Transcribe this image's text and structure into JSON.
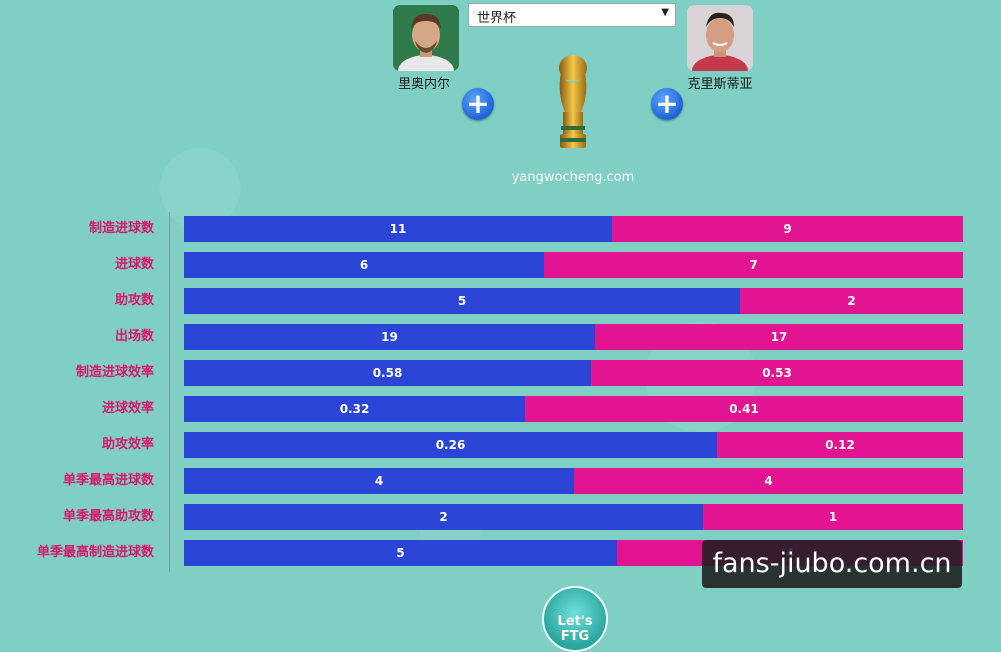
{
  "header": {
    "competition_select": "世界杯",
    "site": "yangwocheng.com",
    "player_left": {
      "name": "里奥内尔"
    },
    "player_right": {
      "name": "克里斯蒂亚"
    }
  },
  "watermark": "fans-jiubo.com.cn",
  "go_button": "Let's FTG",
  "colors": {
    "left": "#2b45d6",
    "right": "#e31491",
    "label": "#d8186c",
    "background": "#7fcfc5"
  },
  "chart_data": {
    "type": "bar",
    "orientation": "horizontal-stacked-100",
    "categories": [
      "制造进球数",
      "进球数",
      "助攻数",
      "出场数",
      "制造进球效率",
      "进球效率",
      "助攻效率",
      "单季最高进球数",
      "单季最高助攻数",
      "单季最高制造进球数"
    ],
    "series": [
      {
        "name": "里奥内尔",
        "values": [
          11,
          6,
          5,
          19,
          0.58,
          0.32,
          0.26,
          4,
          2,
          5
        ],
        "color": "#2b45d6"
      },
      {
        "name": "克里斯蒂亚",
        "values": [
          9,
          7,
          2,
          17,
          0.53,
          0.41,
          0.12,
          4,
          1,
          4
        ],
        "color": "#e31491"
      }
    ],
    "left_labels": [
      "11",
      "6",
      "5",
      "19",
      "0.58",
      "0.32",
      "0.26",
      "4",
      "2",
      "5"
    ],
    "right_labels": [
      "9",
      "7",
      "2",
      "17",
      "0.53",
      "0.41",
      "0.12",
      "4",
      "1",
      "4"
    ]
  }
}
